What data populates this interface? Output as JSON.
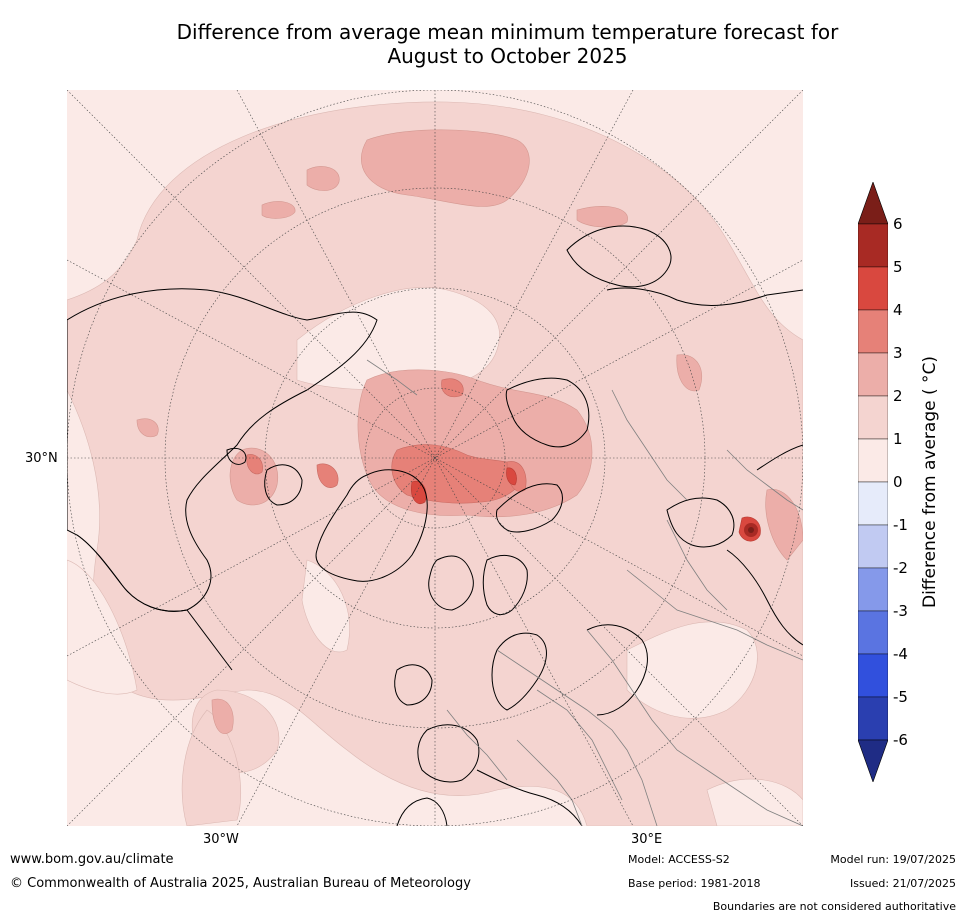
{
  "title": {
    "line1": "Difference from average mean minimum temperature forecast for",
    "line2": "August to October 2025"
  },
  "map": {
    "projection": "north-polar-stereographic",
    "lat_label": "30°N",
    "lon_labels": [
      "30°W",
      "30°E"
    ],
    "colors": {
      "base_0_1": "#fbeae7",
      "bin_1_2": "#f4d4d0",
      "bin_2_3": "#ecaea9",
      "bin_3_4": "#e68178",
      "bin_4_5": "#d9483f",
      "bin_5_6": "#a82a24",
      "above_6": "#7a1e18",
      "coast": "#000000",
      "borders": "#808080"
    }
  },
  "colorbar": {
    "label": "Difference from average ( °C)",
    "ticks": [
      "6",
      "5",
      "4",
      "3",
      "2",
      "1",
      "0",
      "-1",
      "-2",
      "-3",
      "-4",
      "-5",
      "-6"
    ],
    "bins": [
      {
        "range": "5 to 6",
        "color": "#a82a24"
      },
      {
        "range": "4 to 5",
        "color": "#d9483f"
      },
      {
        "range": "3 to 4",
        "color": "#e68178"
      },
      {
        "range": "2 to 3",
        "color": "#ecaea9"
      },
      {
        "range": "1 to 2",
        "color": "#f4d4d0"
      },
      {
        "range": "0 to 1",
        "color": "#fbeae7"
      },
      {
        "range": "-1 to 0",
        "color": "#e6ebfa"
      },
      {
        "range": "-2 to -1",
        "color": "#c1caf2"
      },
      {
        "range": "-3 to -2",
        "color": "#8599ea"
      },
      {
        "range": "-4 to -3",
        "color": "#5a74e1"
      },
      {
        "range": "-5 to -4",
        "color": "#3150dd"
      },
      {
        "range": "-6 to -5",
        "color": "#2a3fb0"
      }
    ],
    "over_color": "#7a1e18",
    "under_color": "#1f2c85"
  },
  "footer": {
    "url": "www.bom.gov.au/climate",
    "copyright": "© Commonwealth of Australia 2025, Australian Bureau of Meteorology",
    "model": "Model: ACCESS-S2",
    "base_period": "Base period: 1981-2018",
    "model_run": "Model run: 19/07/2025",
    "issued": "Issued: 21/07/2025",
    "disclaimer": "Boundaries are not considered authoritative"
  }
}
